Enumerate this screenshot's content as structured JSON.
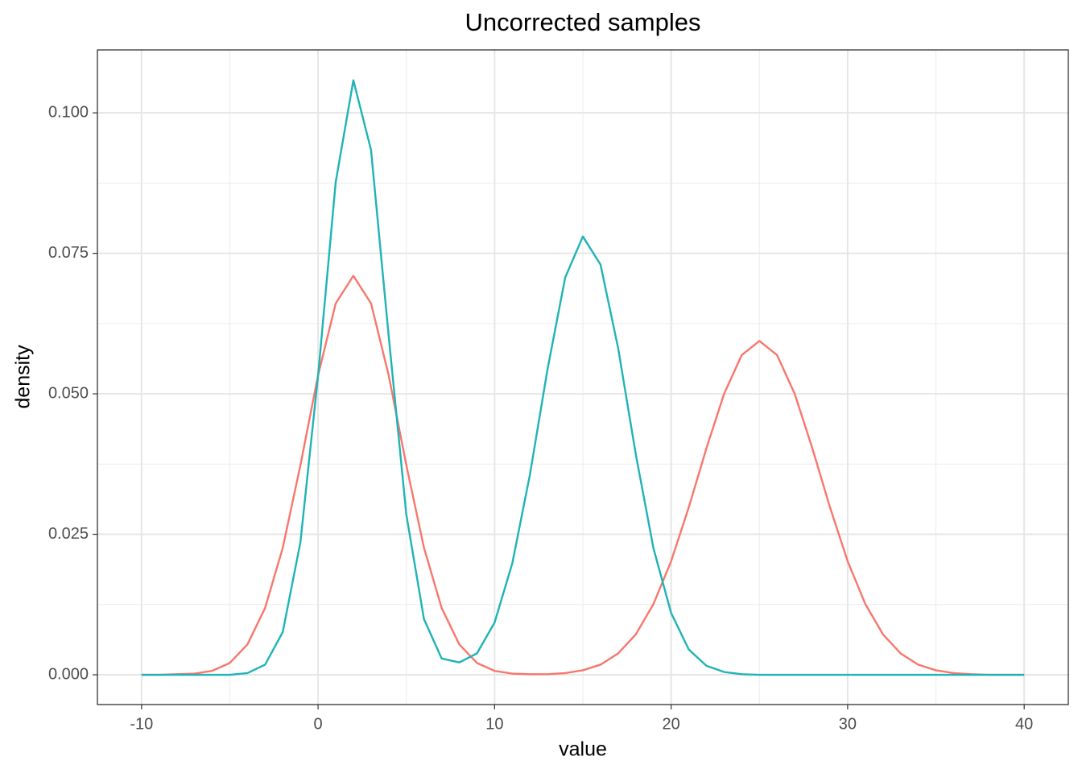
{
  "chart_data": {
    "type": "line",
    "title": "Uncorrected samples",
    "x_label": "value",
    "y_label": "density",
    "x": [
      -10,
      -9,
      -8,
      -7,
      -6,
      -5,
      -4,
      -3,
      -2,
      -1,
      0,
      1,
      2,
      3,
      4,
      5,
      6,
      7,
      8,
      9,
      10,
      11,
      12,
      13,
      14,
      15,
      16,
      17,
      18,
      19,
      20,
      21,
      22,
      23,
      24,
      25,
      26,
      27,
      28,
      29,
      30,
      31,
      32,
      33,
      34,
      35,
      36,
      37,
      38,
      39,
      40
    ],
    "series": [
      {
        "color": "#F8766D",
        "values": [
          0,
          0,
          0.0001,
          0.0002,
          0.0007,
          0.0021,
          0.0054,
          0.0119,
          0.0226,
          0.0373,
          0.0533,
          0.0661,
          0.071,
          0.0661,
          0.0533,
          0.0373,
          0.0226,
          0.0119,
          0.0054,
          0.0021,
          0.0007,
          0.0002,
          0.0001,
          0.0001,
          0.0003,
          0.0008,
          0.0018,
          0.0038,
          0.0072,
          0.0126,
          0.0202,
          0.0298,
          0.0403,
          0.05,
          0.0569,
          0.0594,
          0.0569,
          0.05,
          0.0403,
          0.0298,
          0.0202,
          0.0126,
          0.0072,
          0.0038,
          0.0018,
          0.0008,
          0.0003,
          0.0001,
          0,
          0,
          0
        ]
      },
      {
        "color": "#1FB3B6",
        "values": [
          0,
          0,
          0,
          0,
          0,
          0,
          0.0003,
          0.0018,
          0.0076,
          0.0236,
          0.0532,
          0.0877,
          0.1058,
          0.0934,
          0.0603,
          0.0285,
          0.0099,
          0.0029,
          0.0022,
          0.0038,
          0.0093,
          0.0198,
          0.0356,
          0.0544,
          0.0707,
          0.078,
          0.073,
          0.0581,
          0.0392,
          0.0225,
          0.011,
          0.0045,
          0.0016,
          0.0005,
          0.0001,
          0,
          0,
          0,
          0,
          0,
          0,
          0,
          0,
          0,
          0,
          0,
          0,
          0,
          0,
          0,
          0
        ]
      }
    ],
    "xlim": [
      -12.5,
      42.5
    ],
    "xticks": [
      -10,
      0,
      10,
      20,
      30,
      40
    ],
    "ylim": [
      -0.0053,
      0.1112
    ],
    "yticks": [
      {
        "value": 0,
        "label": "0.000"
      },
      0.025,
      {
        "value": 0.05,
        "label": "0.050"
      },
      0.075,
      {
        "value": 0.1,
        "label": "0.100"
      }
    ],
    "grid": true
  }
}
